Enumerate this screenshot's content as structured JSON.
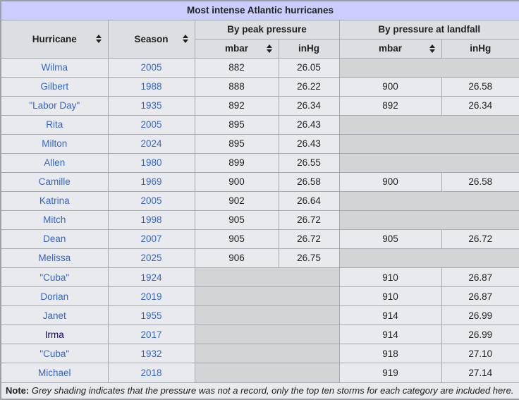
{
  "title": "Most intense Atlantic hurricanes",
  "headers": {
    "hurricane": "Hurricane",
    "season": "Season",
    "peak_group": "By peak pressure",
    "landfall_group": "By pressure at landfall",
    "mbar": "mbar",
    "inhg": "inHg"
  },
  "rows": [
    {
      "hurricane": "Wilma",
      "season": "2005",
      "visited": false,
      "peak": {
        "mbar": "882",
        "inhg": "26.05"
      },
      "landfall": null
    },
    {
      "hurricane": "Gilbert",
      "season": "1988",
      "visited": false,
      "peak": {
        "mbar": "888",
        "inhg": "26.22"
      },
      "landfall": {
        "mbar": "900",
        "inhg": "26.58"
      }
    },
    {
      "hurricane": "\"Labor Day\"",
      "season": "1935",
      "visited": false,
      "peak": {
        "mbar": "892",
        "inhg": "26.34"
      },
      "landfall": {
        "mbar": "892",
        "inhg": "26.34"
      }
    },
    {
      "hurricane": "Rita",
      "season": "2005",
      "visited": false,
      "peak": {
        "mbar": "895",
        "inhg": "26.43"
      },
      "landfall": null
    },
    {
      "hurricane": "Milton",
      "season": "2024",
      "visited": false,
      "peak": {
        "mbar": "895",
        "inhg": "26.43"
      },
      "landfall": null
    },
    {
      "hurricane": "Allen",
      "season": "1980",
      "visited": false,
      "peak": {
        "mbar": "899",
        "inhg": "26.55"
      },
      "landfall": null
    },
    {
      "hurricane": "Camille",
      "season": "1969",
      "visited": false,
      "peak": {
        "mbar": "900",
        "inhg": "26.58"
      },
      "landfall": {
        "mbar": "900",
        "inhg": "26.58"
      }
    },
    {
      "hurricane": "Katrina",
      "season": "2005",
      "visited": false,
      "peak": {
        "mbar": "902",
        "inhg": "26.64"
      },
      "landfall": null
    },
    {
      "hurricane": "Mitch",
      "season": "1998",
      "visited": false,
      "peak": {
        "mbar": "905",
        "inhg": "26.72"
      },
      "landfall": null
    },
    {
      "hurricane": "Dean",
      "season": "2007",
      "visited": false,
      "peak": {
        "mbar": "905",
        "inhg": "26.72"
      },
      "landfall": {
        "mbar": "905",
        "inhg": "26.72"
      }
    },
    {
      "hurricane": "Melissa",
      "season": "2025",
      "visited": false,
      "peak": {
        "mbar": "906",
        "inhg": "26.75"
      },
      "landfall": null
    },
    {
      "hurricane": "\"Cuba\"",
      "season": "1924",
      "visited": false,
      "peak": null,
      "landfall": {
        "mbar": "910",
        "inhg": "26.87"
      }
    },
    {
      "hurricane": "Dorian",
      "season": "2019",
      "visited": false,
      "peak": null,
      "landfall": {
        "mbar": "910",
        "inhg": "26.87"
      }
    },
    {
      "hurricane": "Janet",
      "season": "1955",
      "visited": false,
      "peak": null,
      "landfall": {
        "mbar": "914",
        "inhg": "26.99"
      }
    },
    {
      "hurricane": "Irma",
      "season": "2017",
      "visited": true,
      "peak": null,
      "landfall": {
        "mbar": "914",
        "inhg": "26.99"
      }
    },
    {
      "hurricane": "\"Cuba\"",
      "season": "1932",
      "visited": false,
      "peak": null,
      "landfall": {
        "mbar": "918",
        "inhg": "27.10"
      }
    },
    {
      "hurricane": "Michael",
      "season": "2018",
      "visited": false,
      "peak": null,
      "landfall": {
        "mbar": "919",
        "inhg": "27.14"
      }
    }
  ],
  "note": {
    "label": "Note:",
    "text": " Grey shading indicates that the pressure was not a record, only the top ten storms for each category are included here."
  },
  "colors": {
    "title_bg": "#ccccff",
    "header_bg": "#dcdee2",
    "cell_bg": "#e9eaed",
    "no_record_bg": "#d3d4d6",
    "border": "#a2a9b1",
    "link": "#3366cc",
    "visited_link": "#0b0080"
  }
}
